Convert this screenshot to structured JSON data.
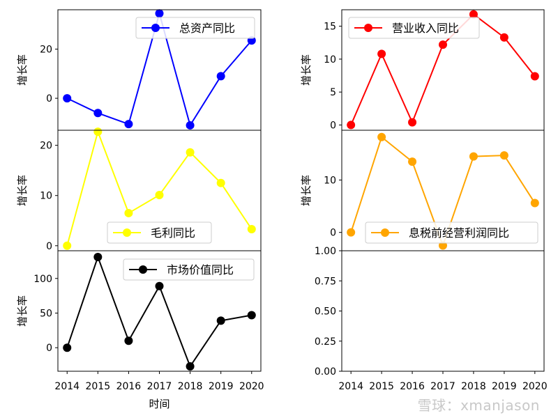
{
  "watermark": "雪球：xmanjason",
  "chart_data": [
    {
      "type": "line",
      "x": [
        2014,
        2015,
        2016,
        2017,
        2018,
        2019,
        2020
      ],
      "series": [
        {
          "name": "总资产同比",
          "values": [
            0,
            -6,
            -10.5,
            34.5,
            -11,
            9,
            23.5
          ],
          "color": "#0000ff"
        }
      ],
      "ylabel": "增长率",
      "xlabel": "",
      "ylim": [
        -13,
        36
      ],
      "yticks": [
        0,
        20
      ],
      "legend": "upper right"
    },
    {
      "type": "line",
      "x": [
        2014,
        2015,
        2016,
        2017,
        2018,
        2019,
        2020
      ],
      "series": [
        {
          "name": "营业收入同比",
          "values": [
            0,
            10.8,
            0.4,
            12.2,
            16.8,
            13.3,
            7.4
          ],
          "color": "#ff0000"
        }
      ],
      "ylabel": "增长率",
      "xlabel": "",
      "ylim": [
        -0.8,
        17.5
      ],
      "yticks": [
        0,
        5,
        10,
        15
      ],
      "legend": "upper left"
    },
    {
      "type": "line",
      "x": [
        2014,
        2015,
        2016,
        2017,
        2018,
        2019,
        2020
      ],
      "series": [
        {
          "name": "毛利同比",
          "values": [
            0,
            22.7,
            6.5,
            10.1,
            18.6,
            12.5,
            3.3
          ],
          "color": "#ffff00"
        }
      ],
      "ylabel": "增长率",
      "xlabel": "",
      "ylim": [
        -1,
        23
      ],
      "yticks": [
        0,
        10,
        20
      ],
      "legend": "lower right"
    },
    {
      "type": "line",
      "x": [
        2014,
        2015,
        2016,
        2017,
        2018,
        2019,
        2020
      ],
      "series": [
        {
          "name": "息税前经营利润同比",
          "values": [
            0,
            18.2,
            13.5,
            -2.5,
            14.5,
            14.7,
            5.6
          ],
          "color": "#ffa500"
        }
      ],
      "ylabel": "增长率",
      "xlabel": "",
      "ylim": [
        -3.5,
        19.5
      ],
      "yticks": [
        0,
        10
      ],
      "legend": "lower right"
    },
    {
      "type": "line",
      "x": [
        2014,
        2015,
        2016,
        2017,
        2018,
        2019,
        2020
      ],
      "xticks": [
        "2014",
        "2015",
        "2016",
        "2017",
        "2018",
        "2019",
        "2020"
      ],
      "series": [
        {
          "name": "市场价值同比",
          "values": [
            0,
            131,
            10,
            89,
            -27,
            39,
            47
          ],
          "color": "#000000"
        }
      ],
      "ylabel": "增长率",
      "xlabel": "时间",
      "ylim": [
        -34,
        140
      ],
      "yticks": [
        0,
        50,
        100
      ],
      "legend": "upper right"
    },
    {
      "type": "line",
      "x": [],
      "xticks": [
        "2014",
        "2015",
        "2016",
        "2017",
        "2018",
        "2019",
        "2020"
      ],
      "series": [],
      "ylabel": "",
      "xlabel": "",
      "ylim": [
        0,
        1
      ],
      "yticks": [
        "0.00",
        "0.25",
        "0.50",
        "0.75",
        "1.00"
      ],
      "legend": "none"
    }
  ]
}
